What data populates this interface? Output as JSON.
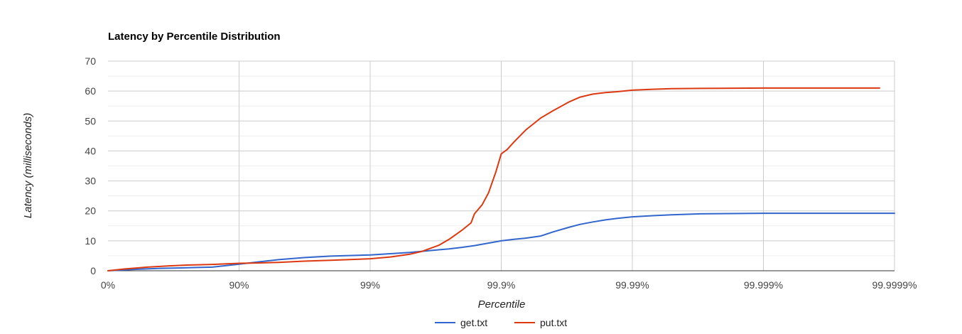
{
  "chart_data": {
    "type": "line",
    "title": "Latency by Percentile Distribution",
    "xlabel": "Percentile",
    "ylabel": "Latency (milliseconds)",
    "x_scale": "percentile-nines",
    "x_ticks": [
      "0%",
      "90%",
      "99%",
      "99.9%",
      "99.99%",
      "99.999%",
      "99.9999%"
    ],
    "y_ticks": [
      "0",
      "10",
      "20",
      "30",
      "40",
      "50",
      "60",
      "70"
    ],
    "ylim": [
      0,
      70
    ],
    "grid": true,
    "legend_position": "bottom",
    "series": [
      {
        "name": "get.txt",
        "color": "#3366cc",
        "points": [
          [
            0,
            0
          ],
          [
            40,
            0.5
          ],
          [
            60,
            0.8
          ],
          [
            75,
            1.0
          ],
          [
            84,
            1.2
          ],
          [
            90,
            2.2
          ],
          [
            93,
            3.0
          ],
          [
            95,
            3.7
          ],
          [
            96.8,
            4.4
          ],
          [
            98,
            4.9
          ],
          [
            99,
            5.3
          ],
          [
            99.3,
            5.7
          ],
          [
            99.5,
            6.1
          ],
          [
            99.6,
            6.5
          ],
          [
            99.7,
            7.0
          ],
          [
            99.75,
            7.3
          ],
          [
            99.8,
            7.8
          ],
          [
            99.84,
            8.4
          ],
          [
            99.87,
            9.1
          ],
          [
            99.9,
            10.0
          ],
          [
            99.92,
            10.5
          ],
          [
            99.935,
            10.9
          ],
          [
            99.95,
            11.6
          ],
          [
            99.96,
            13.0
          ],
          [
            99.97,
            14.6
          ],
          [
            99.975,
            15.5
          ],
          [
            99.98,
            16.3
          ],
          [
            99.984,
            17.0
          ],
          [
            99.987,
            17.5
          ],
          [
            99.99,
            18.0
          ],
          [
            99.993,
            18.4
          ],
          [
            99.995,
            18.7
          ],
          [
            99.997,
            19.0
          ],
          [
            99.999,
            19.2
          ],
          [
            99.9995,
            19.2
          ],
          [
            99.9999,
            19.2
          ]
        ]
      },
      {
        "name": "put.txt",
        "color": "#dc3912",
        "points": [
          [
            0,
            0
          ],
          [
            25,
            0.6
          ],
          [
            50,
            1.2
          ],
          [
            65,
            1.6
          ],
          [
            75,
            1.9
          ],
          [
            84,
            2.1
          ],
          [
            90,
            2.5
          ],
          [
            93,
            2.6
          ],
          [
            95,
            2.8
          ],
          [
            96.8,
            3.2
          ],
          [
            98,
            3.5
          ],
          [
            99,
            4.0
          ],
          [
            99.3,
            4.6
          ],
          [
            99.5,
            5.5
          ],
          [
            99.6,
            6.5
          ],
          [
            99.7,
            8.5
          ],
          [
            99.75,
            10.5
          ],
          [
            99.8,
            13.5
          ],
          [
            99.83,
            16.0
          ],
          [
            99.84,
            19.0
          ],
          [
            99.86,
            22.0
          ],
          [
            99.875,
            26.0
          ],
          [
            99.89,
            33.0
          ],
          [
            99.9,
            39.0
          ],
          [
            99.91,
            40.5
          ],
          [
            99.92,
            43.0
          ],
          [
            99.935,
            47.0
          ],
          [
            99.95,
            51.0
          ],
          [
            99.96,
            53.5
          ],
          [
            99.97,
            56.5
          ],
          [
            99.975,
            58.0
          ],
          [
            99.98,
            59.0
          ],
          [
            99.984,
            59.5
          ],
          [
            99.987,
            59.8
          ],
          [
            99.99,
            60.3
          ],
          [
            99.993,
            60.6
          ],
          [
            99.995,
            60.8
          ],
          [
            99.997,
            60.9
          ],
          [
            99.999,
            61.0
          ],
          [
            99.9995,
            61.0
          ],
          [
            99.99987,
            61.0
          ]
        ]
      }
    ]
  }
}
